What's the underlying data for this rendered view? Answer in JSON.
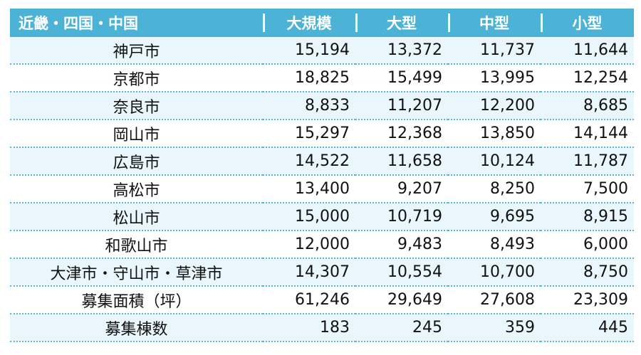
{
  "header": {
    "region": "近畿・四国・中国",
    "cols": [
      "大規模",
      "大型",
      "中型",
      "小型"
    ]
  },
  "rows": [
    {
      "label": "神戸市",
      "values": [
        "15,194",
        "13,372",
        "11,737",
        "11,644"
      ]
    },
    {
      "label": "京都市",
      "values": [
        "18,825",
        "15,499",
        "13,995",
        "12,254"
      ]
    },
    {
      "label": "奈良市",
      "values": [
        "8,833",
        "11,207",
        "12,200",
        "8,685"
      ]
    },
    {
      "label": "岡山市",
      "values": [
        "15,297",
        "12,368",
        "13,850",
        "14,144"
      ]
    },
    {
      "label": "広島市",
      "values": [
        "14,522",
        "11,658",
        "10,124",
        "11,787"
      ]
    },
    {
      "label": "高松市",
      "values": [
        "13,400",
        "9,207",
        "8,250",
        "7,500"
      ]
    },
    {
      "label": "松山市",
      "values": [
        "15,000",
        "10,719",
        "9,695",
        "8,915"
      ]
    },
    {
      "label": "和歌山市",
      "values": [
        "12,000",
        "9,483",
        "8,493",
        "6,000"
      ]
    },
    {
      "label": "大津市・守山市・草津市",
      "values": [
        "14,307",
        "10,554",
        "10,700",
        "8,750"
      ]
    },
    {
      "label": "募集面積（坪）",
      "values": [
        "61,246",
        "29,649",
        "27,608",
        "23,309"
      ]
    },
    {
      "label": "募集棟数",
      "values": [
        "183",
        "245",
        "359",
        "445"
      ]
    }
  ],
  "colors": {
    "header_bg": "#4db3d6",
    "header_text": "#ffffff",
    "row_tint": "#e9f6fb",
    "divider": "#58b8da"
  }
}
